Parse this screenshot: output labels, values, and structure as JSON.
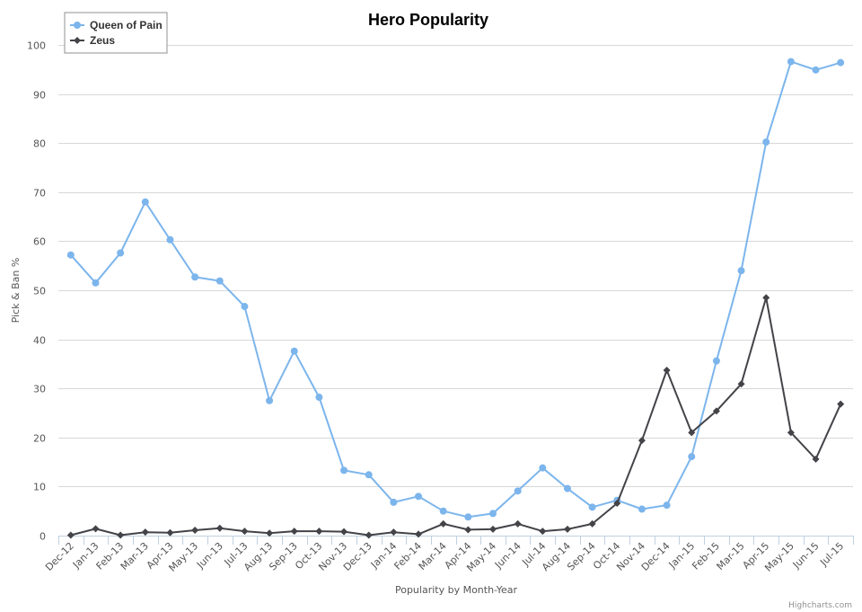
{
  "chart_data": {
    "type": "line",
    "title": "Hero Popularity",
    "xlabel": "Popularity by Month-Year",
    "ylabel": "Pick & Ban %",
    "ylim": [
      0,
      100
    ],
    "yticks": [
      0,
      10,
      20,
      30,
      40,
      50,
      60,
      70,
      80,
      90,
      100
    ],
    "grid": true,
    "legend_position": "top-left",
    "credits": "Highcharts.com",
    "categories": [
      "Dec-12",
      "Jan-13",
      "Feb-13",
      "Mar-13",
      "Apr-13",
      "May-13",
      "Jun-13",
      "Jul-13",
      "Aug-13",
      "Sep-13",
      "Oct-13",
      "Nov-13",
      "Dec-13",
      "Jan-14",
      "Feb-14",
      "Mar-14",
      "Apr-14",
      "May-14",
      "Jun-14",
      "Jul-14",
      "Aug-14",
      "Sep-14",
      "Oct-14",
      "Nov-14",
      "Dec-14",
      "Jan-15",
      "Feb-15",
      "Mar-15",
      "Apr-15",
      "May-15",
      "Jun-15",
      "Jul-15"
    ],
    "series": [
      {
        "name": "Queen of Pain",
        "color": "#7cb5ec",
        "marker": "circle",
        "values": [
          57.2,
          51.5,
          57.6,
          68.0,
          60.3,
          52.7,
          51.9,
          46.7,
          27.5,
          37.6,
          28.2,
          13.3,
          12.4,
          6.8,
          8.0,
          5.0,
          3.8,
          4.5,
          9.1,
          13.8,
          9.6,
          5.8,
          7.2,
          5.4,
          6.2,
          16.1,
          35.6,
          54.0,
          80.2,
          96.6,
          94.9,
          96.4
        ]
      },
      {
        "name": "Zeus",
        "color": "#434348",
        "marker": "diamond",
        "values": [
          0.1,
          1.4,
          0.1,
          0.7,
          0.6,
          1.1,
          1.5,
          0.9,
          0.5,
          0.9,
          0.9,
          0.8,
          0.1,
          0.7,
          0.3,
          2.4,
          1.2,
          1.3,
          2.4,
          0.9,
          1.3,
          2.4,
          6.6,
          19.4,
          33.7,
          21.0,
          25.4,
          30.9,
          48.5,
          21.0,
          15.6,
          26.8
        ]
      }
    ]
  }
}
